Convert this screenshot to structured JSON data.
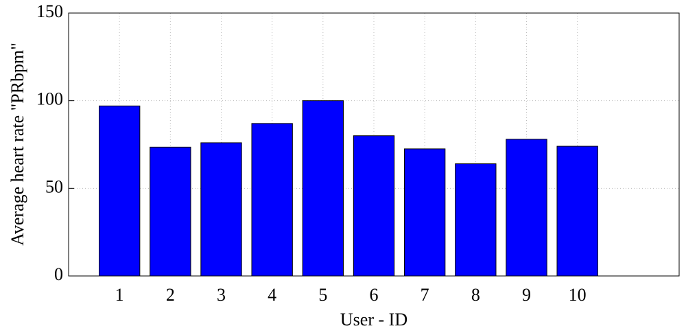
{
  "chart_data": {
    "type": "bar",
    "x": [
      1,
      2,
      3,
      4,
      5,
      6,
      7,
      8,
      9,
      10
    ],
    "values": [
      97,
      73.5,
      76,
      87,
      100,
      80,
      72.5,
      64,
      78,
      74
    ],
    "color": "#0000ff",
    "xlabel": "User - ID",
    "ylabel": "Average heart rate \"PRbpm\"",
    "xlim": [
      0,
      12
    ],
    "xticks": [
      1,
      2,
      3,
      4,
      5,
      6,
      7,
      8,
      9,
      10
    ],
    "ylim": [
      0,
      150
    ],
    "yticks": [
      0,
      50,
      100,
      150
    ],
    "grid": true
  }
}
